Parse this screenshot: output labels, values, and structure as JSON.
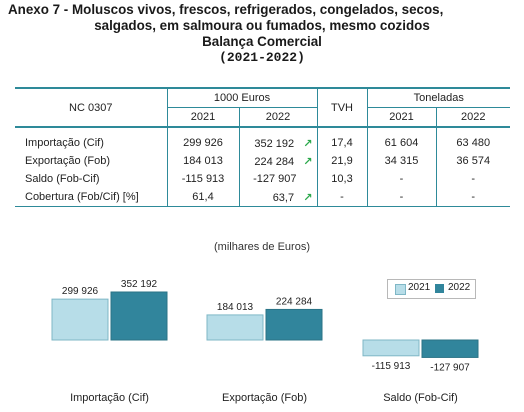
{
  "title": {
    "line1": "Anexo 7 - Moluscos vivos, frescos, refrigerados, congelados, secos,",
    "line2": "salgados, em salmoura ou fumados, mesmo cozidos",
    "line3": "Balança Comercial",
    "line4": "(2021-2022)"
  },
  "table": {
    "nc": "NC 0307",
    "euros_header": "1000 Euros",
    "tvh_header": "TVH",
    "tons_header": "Toneladas",
    "y1": "2021",
    "y2": "2022",
    "y3": "2021",
    "y4": "2022",
    "rows": [
      {
        "label": "Importação (Cif)",
        "e2021": "299 926",
        "e2022": "352 192",
        "arrow": "↗",
        "tvh": "17,4",
        "t2021": "61 604",
        "t2022": "63 480"
      },
      {
        "label": "Exportação (Fob)",
        "e2021": "184 013",
        "e2022": "224 284",
        "arrow": "↗",
        "tvh": "21,9",
        "t2021": "34 315",
        "t2022": "36 574"
      },
      {
        "label": "Saldo (Fob-Cif)",
        "e2021": "-115 913",
        "e2022": "-127 907",
        "arrow": "",
        "tvh": "10,3",
        "t2021": "-",
        "t2022": "-"
      },
      {
        "label": "Cobertura (Fob/Cif) [%]",
        "e2021": "61,4",
        "e2022": "63,7",
        "arrow": "↗",
        "tvh": "-",
        "t2021": "-",
        "t2022": "-"
      }
    ]
  },
  "colors": {
    "accent": "#2e8a99",
    "bar2021": "#b7dde8",
    "bar2022": "#31859c",
    "arrow": "#2aa84a"
  },
  "chart_data": {
    "type": "bar",
    "subtitle": "(milhares de Euros)",
    "categories": [
      "Importação (Cif)",
      "Exportação (Fob)",
      "Saldo (Fob-Cif)"
    ],
    "series": [
      {
        "name": "2021",
        "values": [
          299926,
          184013,
          -115913
        ]
      },
      {
        "name": "2022",
        "values": [
          352192,
          224284,
          -127907
        ]
      }
    ],
    "data_labels": [
      [
        "299 926",
        "184 013",
        "-115 913"
      ],
      [
        "352 192",
        "224 284",
        "-127 907"
      ]
    ],
    "legend": "top-right",
    "grid": false
  }
}
